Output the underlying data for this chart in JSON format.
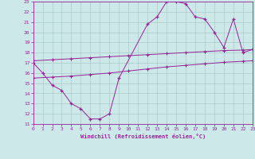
{
  "xlabel": "Windchill (Refroidissement éolien,°C)",
  "bg_color": "#cce8e8",
  "grid_color": "#aacccc",
  "line_color": "#992299",
  "xmin": 0,
  "xmax": 23,
  "ymin": 11,
  "ymax": 23,
  "curve_x": [
    0,
    1,
    2,
    3,
    4,
    5,
    6,
    7,
    8,
    9,
    12,
    13,
    14,
    15,
    16,
    17,
    18,
    19,
    20,
    21,
    22,
    23
  ],
  "curve_y": [
    17,
    16,
    14.8,
    14.3,
    13.0,
    12.5,
    11.5,
    11.5,
    12.0,
    15.5,
    20.8,
    21.5,
    23.0,
    23.0,
    22.8,
    21.5,
    21.3,
    20.0,
    18.5,
    21.3,
    18.0,
    18.3
  ],
  "line1_x": [
    0,
    2,
    4,
    6,
    8,
    10,
    12,
    14,
    16,
    18,
    20,
    22,
    23
  ],
  "line1_y": [
    17.2,
    17.3,
    17.4,
    17.5,
    17.6,
    17.7,
    17.8,
    17.9,
    18.0,
    18.1,
    18.2,
    18.25,
    18.3
  ],
  "line2_x": [
    0,
    2,
    4,
    6,
    8,
    10,
    12,
    14,
    16,
    18,
    20,
    22,
    23
  ],
  "line2_y": [
    15.5,
    15.6,
    15.7,
    15.85,
    16.0,
    16.2,
    16.4,
    16.6,
    16.75,
    16.9,
    17.05,
    17.15,
    17.2
  ]
}
